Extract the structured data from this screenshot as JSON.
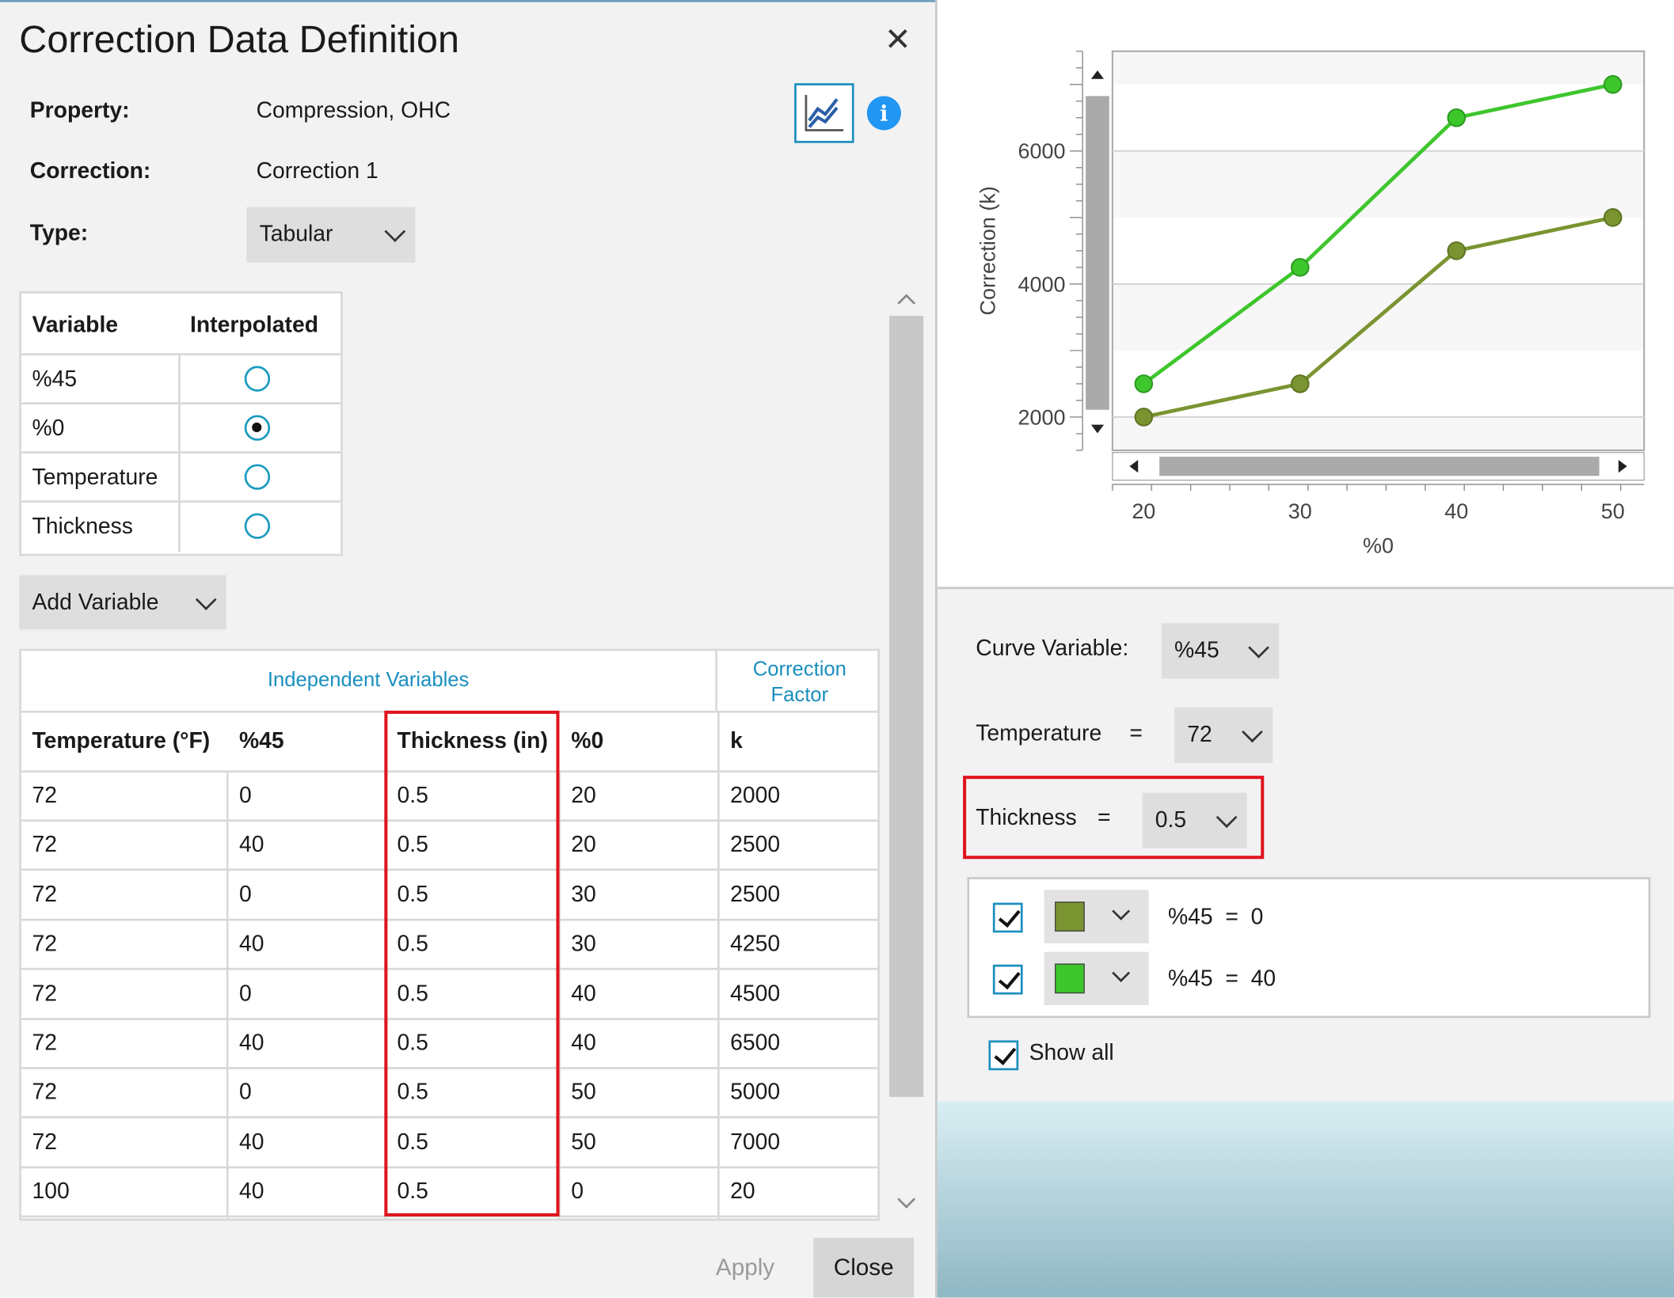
{
  "dialog": {
    "title": "Correction Data Definition",
    "close_icon": "close-icon"
  },
  "property": {
    "label": "Property:",
    "value": "Compression, OHC"
  },
  "correction": {
    "label": "Correction:",
    "value": "Correction 1"
  },
  "type": {
    "label": "Type:",
    "value": "Tabular"
  },
  "variables_table": {
    "headers": [
      "Variable",
      "Interpolated"
    ],
    "rows": [
      {
        "name": "%45",
        "interpolated": false
      },
      {
        "name": "%0",
        "interpolated": true
      },
      {
        "name": "Temperature",
        "interpolated": false
      },
      {
        "name": "Thickness",
        "interpolated": false
      }
    ]
  },
  "add_variable": {
    "label": "Add Variable"
  },
  "data_grid": {
    "group_headers": {
      "independent": "Independent Variables",
      "correction_line1": "Correction",
      "correction_line2": "Factor"
    },
    "columns": [
      "Temperature (°F)",
      "%45",
      "Thickness (in)",
      "%0",
      "k"
    ],
    "rows": [
      [
        "72",
        "0",
        "0.5",
        "20",
        "2000"
      ],
      [
        "72",
        "40",
        "0.5",
        "20",
        "2500"
      ],
      [
        "72",
        "0",
        "0.5",
        "30",
        "2500"
      ],
      [
        "72",
        "40",
        "0.5",
        "30",
        "4250"
      ],
      [
        "72",
        "0",
        "0.5",
        "40",
        "4500"
      ],
      [
        "72",
        "40",
        "0.5",
        "40",
        "6500"
      ],
      [
        "72",
        "0",
        "0.5",
        "50",
        "5000"
      ],
      [
        "72",
        "40",
        "0.5",
        "50",
        "7000"
      ],
      [
        "100",
        "40",
        "0.5",
        "0",
        "20"
      ]
    ]
  },
  "footer": {
    "apply_label": "Apply",
    "close_label": "Close"
  },
  "colors": {
    "accent": "#1b8fbf",
    "highlight": "#e0141e",
    "series_0": "#7a9431",
    "series_40": "#3ec62d"
  },
  "chart_data": {
    "type": "line",
    "xlabel": "%0",
    "ylabel": "Correction (k)",
    "x": [
      20,
      30,
      40,
      50
    ],
    "x_ticks": [
      "20",
      "30",
      "40",
      "50"
    ],
    "y_ticks": [
      "2000",
      "4000",
      "6000"
    ],
    "ylim": [
      1500,
      7500
    ],
    "xlim": [
      18,
      52
    ],
    "grid": true,
    "series": [
      {
        "name": "%45 = 0",
        "color": "#7a9431",
        "values": [
          2000,
          2500,
          4500,
          5000
        ]
      },
      {
        "name": "%45 = 40",
        "color": "#3ec62d",
        "values": [
          2500,
          4250,
          6500,
          7000
        ]
      }
    ]
  },
  "curve_panel": {
    "curve_variable_label": "Curve Variable:",
    "curve_variable_value": "%45",
    "temperature_label": "Temperature",
    "temperature_eq": "=",
    "temperature_value": "72",
    "thickness_label": "Thickness",
    "thickness_eq": "=",
    "thickness_value": "0.5",
    "legend": [
      {
        "label": "%45  =  0",
        "color": "#7a9431",
        "checked": true
      },
      {
        "label": "%45  =  40",
        "color": "#3ec62d",
        "checked": true
      }
    ],
    "show_all_label": "Show all"
  }
}
